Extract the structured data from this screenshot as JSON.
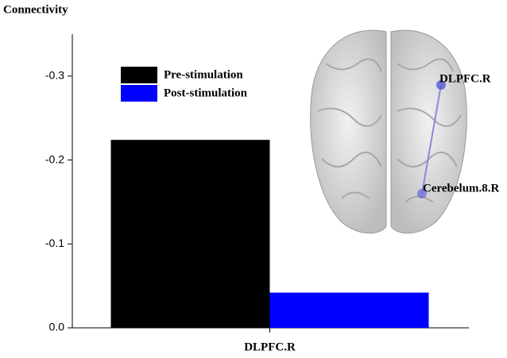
{
  "chart_data": {
    "type": "bar",
    "title": "Connectivity",
    "categories": [
      "DLPFC.R"
    ],
    "series": [
      {
        "name": "Pre-stimulation",
        "color": "#000000",
        "values": [
          -0.224
        ]
      },
      {
        "name": "Post-stimulation",
        "color": "#0000ff",
        "values": [
          -0.042
        ]
      }
    ],
    "ylim": [
      0,
      -0.35
    ],
    "yticks": [
      {
        "value": 0,
        "label": "0.0"
      },
      -0.1,
      -0.2,
      -0.3
    ],
    "legend": "upper left",
    "annotations": [
      "DLPFC.R",
      "Cerebelum.8.R"
    ]
  }
}
